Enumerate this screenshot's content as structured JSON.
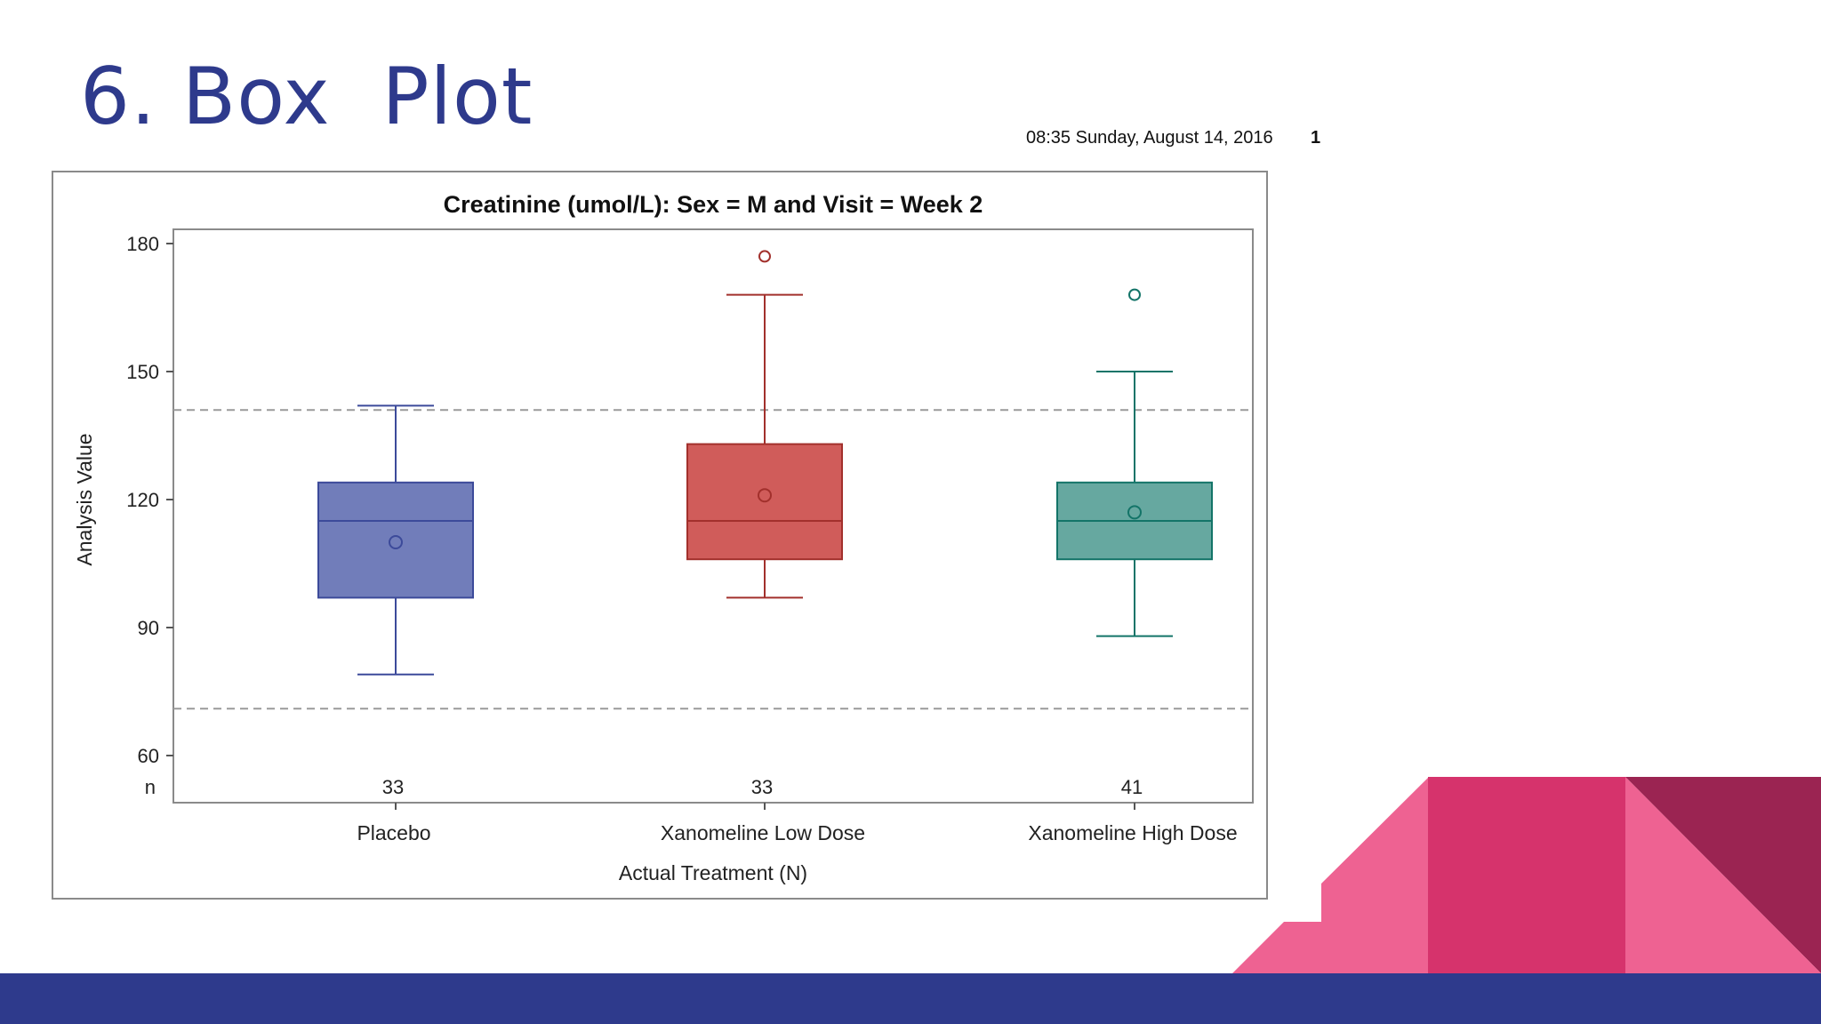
{
  "slide": {
    "title": "6. Box  Plot",
    "timestamp": "08:35 Sunday, August 14, 2016",
    "page_number": "1",
    "colors": {
      "title": "#2e3a8c",
      "footer_bar": "#2e3a8c",
      "deco_light": "#ee6292",
      "deco_mid": "#d6336c",
      "deco_dark": "#9b2452"
    }
  },
  "chart_data": {
    "type": "box",
    "title": "Creatinine (umol/L): Sex = M and Visit = Week 2",
    "xlabel": "Actual Treatment (N)",
    "ylabel": "Analysis Value",
    "ylim": [
      55,
      190
    ],
    "yticks": [
      60,
      90,
      120,
      150,
      180
    ],
    "reference_lines": [
      71,
      141
    ],
    "n_label": "n",
    "grid": false,
    "legend": "none",
    "categories": [
      "Placebo",
      "Xanomeline Low Dose",
      "Xanomeline High Dose"
    ],
    "series": [
      {
        "category": "Placebo",
        "n": "33",
        "whisker_low": 79,
        "q1": 97,
        "median": 115,
        "q3": 124,
        "whisker_high": 142,
        "mean": 110,
        "outliers": [],
        "fill": "#717dba",
        "stroke": "#3c4a9a"
      },
      {
        "category": "Xanomeline Low Dose",
        "n": "33",
        "whisker_low": 97,
        "q1": 106,
        "median": 115,
        "q3": 133,
        "whisker_high": 168,
        "mean": 121,
        "outliers": [
          177
        ],
        "fill": "#d05c5a",
        "stroke": "#a2302c"
      },
      {
        "category": "Xanomeline High Dose",
        "n": "41",
        "whisker_low": 88,
        "q1": 106,
        "median": 115,
        "q3": 124,
        "whisker_high": 150,
        "mean": 117,
        "outliers": [
          168
        ],
        "fill": "#66a8a0",
        "stroke": "#137468"
      }
    ]
  }
}
